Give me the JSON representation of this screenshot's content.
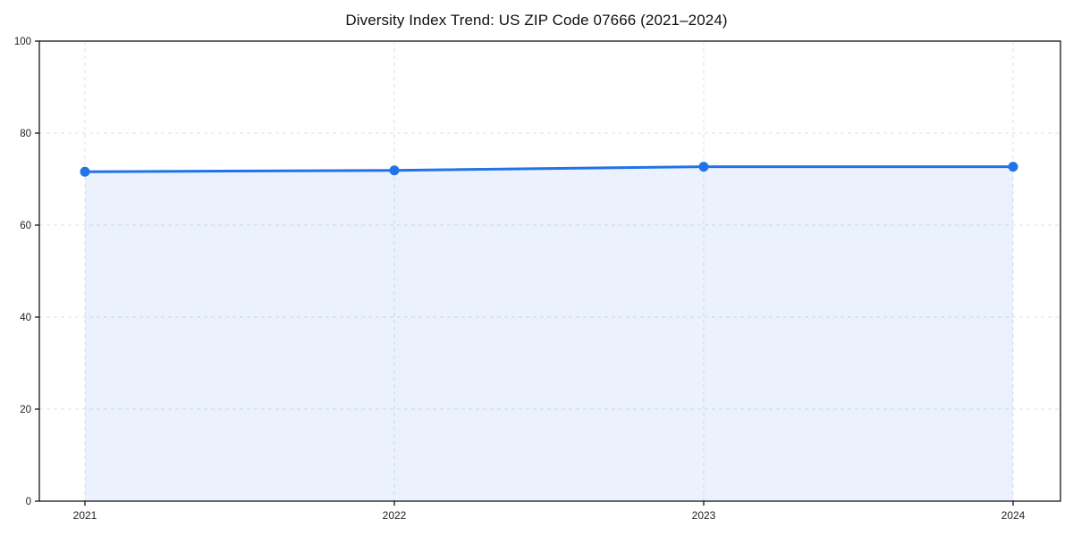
{
  "chart_data": {
    "type": "line",
    "title": "Diversity Index Trend: US ZIP Code 07666 (2021–2024)",
    "x": [
      "2021",
      "2022",
      "2023",
      "2024"
    ],
    "series": [
      {
        "name": "Diversity Index",
        "values": [
          71.6,
          71.9,
          72.7,
          72.7
        ]
      }
    ],
    "xlabel": "",
    "ylabel": "",
    "ylim": [
      0,
      100
    ],
    "yticks": [
      0,
      20,
      40,
      60,
      80,
      100
    ],
    "grid": true,
    "grid_style": "dashed",
    "legend": "none",
    "marker": "circle",
    "colors": {
      "line": "#2272e8",
      "fill": "#2272e8",
      "fill_opacity": "0.09",
      "grid": "#e0e0e0",
      "axis": "#000000",
      "tick_text": "#222222",
      "title_text": "#111111",
      "background": "#ffffff"
    }
  }
}
